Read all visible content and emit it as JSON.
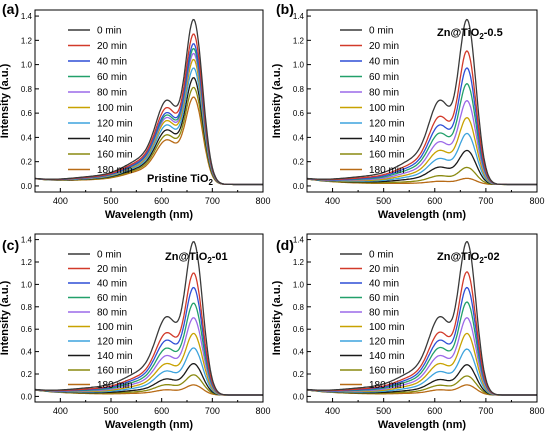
{
  "chart_data": [
    {
      "type": "line",
      "panel_label": "(a)",
      "title": "",
      "annotation": {
        "base": "Pristine TiO",
        "sub": "2",
        "tail": ""
      },
      "xlabel": "Wavelength (nm)",
      "ylabel": "Intensity (a.u.)",
      "xlim": [
        350,
        800
      ],
      "ylim": [
        -0.05,
        1.45
      ],
      "xticks": [
        400,
        500,
        600,
        700,
        800
      ],
      "yticks": [
        0.0,
        0.2,
        0.4,
        0.6,
        0.8,
        1.0,
        1.2,
        1.4
      ],
      "grid": false,
      "legend_position": "top-left",
      "peak_wavelength_nm": 663,
      "series": [
        {
          "name": "0 min",
          "peak": 1.36
        },
        {
          "name": "20 min",
          "peak": 1.24
        },
        {
          "name": "40 min",
          "peak": 1.16
        },
        {
          "name": "60 min",
          "peak": 1.12
        },
        {
          "name": "80 min",
          "peak": 1.08
        },
        {
          "name": "100 min",
          "peak": 1.03
        },
        {
          "name": "120 min",
          "peak": 0.96
        },
        {
          "name": "140 min",
          "peak": 0.88
        },
        {
          "name": "160 min",
          "peak": 0.8
        },
        {
          "name": "180 min",
          "peak": 0.72
        }
      ]
    },
    {
      "type": "line",
      "panel_label": "(b)",
      "title": "",
      "annotation": {
        "base": "Zn@TiO",
        "sub": "2",
        "tail": "-0.5"
      },
      "xlabel": "Wavelength (nm)",
      "ylabel": "Intensity (a.u.)",
      "xlim": [
        350,
        800
      ],
      "ylim": [
        -0.05,
        1.45
      ],
      "xticks": [
        400,
        500,
        600,
        700,
        800
      ],
      "yticks": [
        0.0,
        0.2,
        0.4,
        0.6,
        0.8,
        1.0,
        1.2,
        1.4
      ],
      "grid": false,
      "legend_position": "top-left",
      "peak_wavelength_nm": 663,
      "series": [
        {
          "name": "0 min",
          "peak": 1.36
        },
        {
          "name": "20 min",
          "peak": 1.1
        },
        {
          "name": "40 min",
          "peak": 0.96
        },
        {
          "name": "60 min",
          "peak": 0.83
        },
        {
          "name": "80 min",
          "peak": 0.69
        },
        {
          "name": "100 min",
          "peak": 0.55
        },
        {
          "name": "120 min",
          "peak": 0.42
        },
        {
          "name": "140 min",
          "peak": 0.28
        },
        {
          "name": "160 min",
          "peak": 0.14
        },
        {
          "name": "180 min",
          "peak": 0.05
        }
      ]
    },
    {
      "type": "line",
      "panel_label": "(c)",
      "title": "",
      "annotation": {
        "base": "Zn@TiO",
        "sub": "2",
        "tail": "-01"
      },
      "xlabel": "Wavelength (nm)",
      "ylabel": "Intensity (a.u.)",
      "xlim": [
        350,
        800
      ],
      "ylim": [
        -0.05,
        1.45
      ],
      "xticks": [
        400,
        500,
        600,
        700,
        800
      ],
      "yticks": [
        0.0,
        0.2,
        0.4,
        0.6,
        0.8,
        1.0,
        1.2,
        1.4
      ],
      "grid": false,
      "legend_position": "top-left",
      "peak_wavelength_nm": 663,
      "series": [
        {
          "name": "0 min",
          "peak": 1.37
        },
        {
          "name": "20 min",
          "peak": 1.09
        },
        {
          "name": "40 min",
          "peak": 0.96
        },
        {
          "name": "60 min",
          "peak": 0.82
        },
        {
          "name": "80 min",
          "peak": 0.69
        },
        {
          "name": "100 min",
          "peak": 0.55
        },
        {
          "name": "120 min",
          "peak": 0.42
        },
        {
          "name": "140 min",
          "peak": 0.28
        },
        {
          "name": "160 min",
          "peak": 0.18
        },
        {
          "name": "180 min",
          "peak": 0.09
        }
      ]
    },
    {
      "type": "line",
      "panel_label": "(d)",
      "title": "",
      "annotation": {
        "base": "Zn@TiO",
        "sub": "2",
        "tail": "-02"
      },
      "xlabel": "Wavelength (nm)",
      "ylabel": "Intensity (a.u.)",
      "xlim": [
        350,
        800
      ],
      "ylim": [
        -0.05,
        1.45
      ],
      "xticks": [
        400,
        500,
        600,
        700,
        800
      ],
      "yticks": [
        0.0,
        0.2,
        0.4,
        0.6,
        0.8,
        1.0,
        1.2,
        1.4
      ],
      "grid": false,
      "legend_position": "top-left",
      "peak_wavelength_nm": 663,
      "series": [
        {
          "name": "0 min",
          "peak": 1.37
        },
        {
          "name": "20 min",
          "peak": 1.1
        },
        {
          "name": "40 min",
          "peak": 0.96
        },
        {
          "name": "60 min",
          "peak": 0.83
        },
        {
          "name": "80 min",
          "peak": 0.69
        },
        {
          "name": "100 min",
          "peak": 0.55
        },
        {
          "name": "120 min",
          "peak": 0.41
        },
        {
          "name": "140 min",
          "peak": 0.27
        },
        {
          "name": "160 min",
          "peak": 0.17
        },
        {
          "name": "180 min",
          "peak": 0.09
        }
      ]
    }
  ],
  "series_colors": [
    "#3a3a3a",
    "#d23a2a",
    "#2f4fd6",
    "#22a06a",
    "#9c6ae8",
    "#c8a200",
    "#3da3dd",
    "#1a1a1a",
    "#8a8a10",
    "#b86b16"
  ]
}
